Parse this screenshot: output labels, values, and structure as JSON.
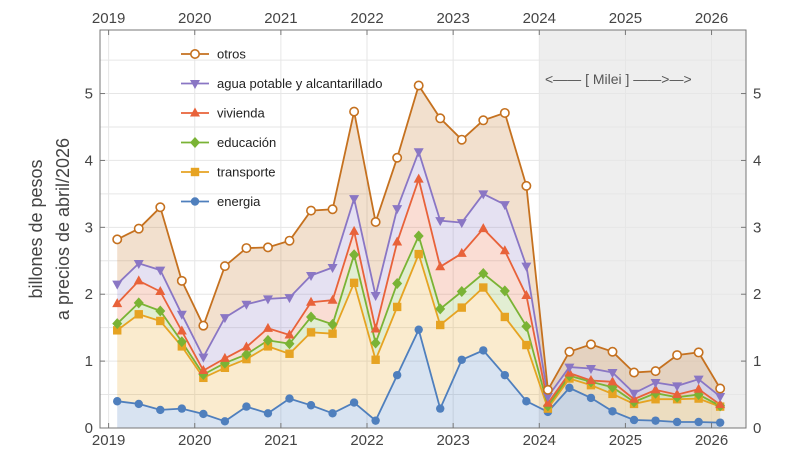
{
  "chart_data": {
    "type": "area",
    "ylabel_line1": "billones de pesos",
    "ylabel_line2": "a precios de abril/2026",
    "ylim": [
      0,
      5.95
    ],
    "xlim": [
      2018.9,
      2026.4
    ],
    "x_ticks": [
      2019,
      2020,
      2021,
      2022,
      2023,
      2024,
      2025,
      2026
    ],
    "x_tick_labels": [
      "2019",
      "2020",
      "2021",
      "2022",
      "2023",
      "2024",
      "2025",
      "2026"
    ],
    "y_ticks": [
      0,
      1,
      2,
      3,
      4,
      5
    ],
    "y_tick_labels": [
      "0",
      "1",
      "2",
      "3",
      "4",
      "5"
    ],
    "grid": true,
    "legend_position": "top-left",
    "annotation": "<—— [ Milei ] ——>—>",
    "shaded_period": [
      2024.0,
      2026.4
    ],
    "x": [
      2019.1,
      2019.35,
      2019.6,
      2019.85,
      2020.1,
      2020.35,
      2020.6,
      2020.85,
      2021.1,
      2021.35,
      2021.6,
      2021.85,
      2022.1,
      2022.35,
      2022.6,
      2022.85,
      2023.1,
      2023.35,
      2023.6,
      2023.85,
      2024.1,
      2024.35,
      2024.6,
      2024.85,
      2025.1,
      2025.35,
      2025.6,
      2025.85,
      2026.1
    ],
    "series": [
      {
        "name": "otros",
        "color": "#c5711f",
        "marker": "circle-open",
        "values": [
          2.82,
          2.98,
          3.3,
          2.2,
          1.53,
          2.42,
          2.69,
          2.7,
          2.8,
          3.25,
          3.27,
          4.73,
          3.08,
          4.04,
          5.12,
          4.63,
          4.31,
          4.6,
          4.71,
          3.62,
          0.57,
          1.14,
          1.25,
          1.14,
          0.83,
          0.85,
          1.09,
          1.13,
          0.59
        ]
      },
      {
        "name": "agua potable y alcantarillado",
        "color": "#8a76c4",
        "marker": "triangle-down",
        "values": [
          2.15,
          2.46,
          2.36,
          1.7,
          1.06,
          1.65,
          1.85,
          1.93,
          1.95,
          2.28,
          2.4,
          3.43,
          1.98,
          3.28,
          4.13,
          3.1,
          3.07,
          3.5,
          3.34,
          2.42,
          0.47,
          0.91,
          0.89,
          0.83,
          0.52,
          0.68,
          0.63,
          0.73,
          0.47
        ]
      },
      {
        "name": "vivienda",
        "color": "#e8623a",
        "marker": "triangle-up",
        "values": [
          1.86,
          2.2,
          2.04,
          1.45,
          0.86,
          1.04,
          1.21,
          1.49,
          1.39,
          1.88,
          1.91,
          2.94,
          1.48,
          2.78,
          3.72,
          2.41,
          2.61,
          2.98,
          2.65,
          1.98,
          0.37,
          0.82,
          0.71,
          0.69,
          0.43,
          0.57,
          0.5,
          0.58,
          0.35
        ]
      },
      {
        "name": "educación",
        "color": "#7ab335",
        "marker": "diamond",
        "values": [
          1.56,
          1.87,
          1.75,
          1.29,
          0.8,
          0.97,
          1.1,
          1.31,
          1.26,
          1.66,
          1.55,
          2.59,
          1.27,
          2.16,
          2.87,
          1.78,
          2.04,
          2.31,
          2.05,
          1.52,
          0.33,
          0.78,
          0.69,
          0.61,
          0.39,
          0.52,
          0.46,
          0.5,
          0.33
        ]
      },
      {
        "name": "transporte",
        "color": "#e6a322",
        "marker": "square",
        "values": [
          1.46,
          1.7,
          1.6,
          1.22,
          0.75,
          0.9,
          1.03,
          1.22,
          1.11,
          1.43,
          1.41,
          2.17,
          1.02,
          1.81,
          2.6,
          1.54,
          1.8,
          2.1,
          1.66,
          1.24,
          0.29,
          0.74,
          0.64,
          0.51,
          0.36,
          0.43,
          0.43,
          0.44,
          0.32
        ]
      },
      {
        "name": "energia",
        "color": "#4f7fbd",
        "marker": "circle",
        "values": [
          0.4,
          0.36,
          0.27,
          0.29,
          0.21,
          0.1,
          0.32,
          0.22,
          0.44,
          0.34,
          0.22,
          0.38,
          0.11,
          0.79,
          1.47,
          0.29,
          1.02,
          1.16,
          0.79,
          0.4,
          0.24,
          0.6,
          0.45,
          0.25,
          0.12,
          0.11,
          0.09,
          0.09,
          0.08
        ]
      }
    ]
  }
}
